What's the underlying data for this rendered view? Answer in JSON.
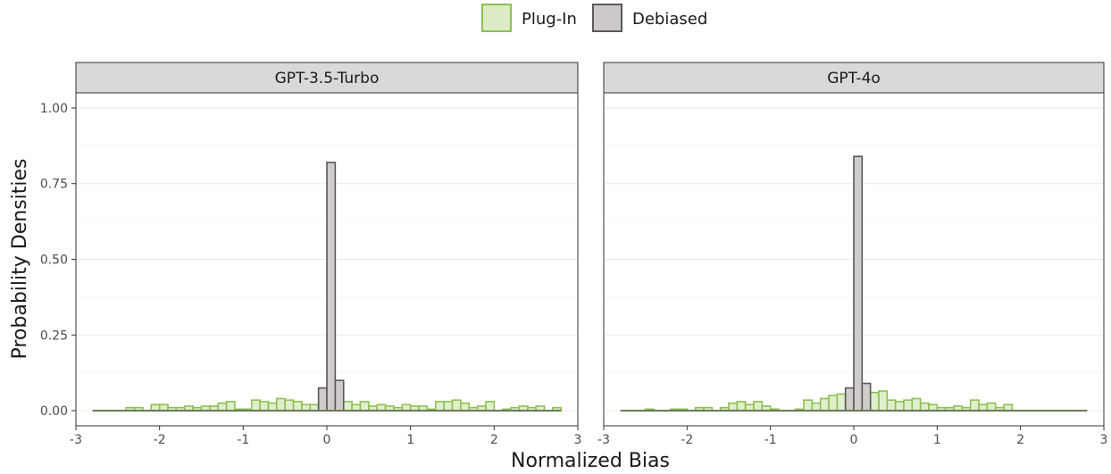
{
  "chart_data": {
    "type": "bar",
    "xlabel": "Normalized Bias",
    "ylabel": "Probability Densities",
    "xlim": [
      -3,
      3
    ],
    "ylim": [
      -0.05,
      1.05
    ],
    "x_ticks": [
      -3,
      -2,
      -1,
      0,
      1,
      2,
      3
    ],
    "x_tick_labels": [
      "-3",
      "-2",
      "-1",
      "0",
      "1",
      "2",
      "3"
    ],
    "y_ticks": [
      0,
      0.25,
      0.5,
      0.75,
      1
    ],
    "y_tick_labels": [
      "0.00",
      "0.25",
      "0.50",
      "0.75",
      "1.00"
    ],
    "grid": true,
    "legend": {
      "position": "top",
      "entries": [
        {
          "name": "Plug-In",
          "fill": "#dcebc6",
          "stroke": "#8cc152"
        },
        {
          "name": "Debiased",
          "fill": "#cdc9c9",
          "stroke": "#595959"
        }
      ]
    },
    "bin_width": 0.1,
    "x_range": [
      -2.8,
      2.8
    ],
    "panels": [
      {
        "title": "GPT-3.5-Turbo",
        "series": [
          {
            "name": "Plug-In",
            "bins": [
              [
                -2.35,
                0.01
              ],
              [
                -2.25,
                0.01
              ],
              [
                -2.05,
                0.02
              ],
              [
                -1.95,
                0.02
              ],
              [
                -1.85,
                0.01
              ],
              [
                -1.75,
                0.01
              ],
              [
                -1.65,
                0.015
              ],
              [
                -1.55,
                0.01
              ],
              [
                -1.45,
                0.015
              ],
              [
                -1.35,
                0.015
              ],
              [
                -1.25,
                0.025
              ],
              [
                -1.15,
                0.03
              ],
              [
                -1.05,
                0.005
              ],
              [
                -0.95,
                0.005
              ],
              [
                -0.85,
                0.035
              ],
              [
                -0.75,
                0.03
              ],
              [
                -0.65,
                0.025
              ],
              [
                -0.55,
                0.04
              ],
              [
                -0.45,
                0.035
              ],
              [
                -0.35,
                0.03
              ],
              [
                -0.25,
                0.02
              ],
              [
                -0.15,
                0.02
              ],
              [
                -0.05,
                0.025
              ],
              [
                0.05,
                0.02
              ],
              [
                0.25,
                0.03
              ],
              [
                0.35,
                0.02
              ],
              [
                0.45,
                0.03
              ],
              [
                0.55,
                0.015
              ],
              [
                0.65,
                0.02
              ],
              [
                0.75,
                0.015
              ],
              [
                0.85,
                0.01
              ],
              [
                0.95,
                0.02
              ],
              [
                1.05,
                0.015
              ],
              [
                1.15,
                0.015
              ],
              [
                1.25,
                0.005
              ],
              [
                1.35,
                0.03
              ],
              [
                1.45,
                0.03
              ],
              [
                1.55,
                0.035
              ],
              [
                1.65,
                0.025
              ],
              [
                1.75,
                0.01
              ],
              [
                1.85,
                0.015
              ],
              [
                1.95,
                0.03
              ],
              [
                2.15,
                0.005
              ],
              [
                2.25,
                0.01
              ],
              [
                2.35,
                0.015
              ],
              [
                2.45,
                0.01
              ],
              [
                2.55,
                0.015
              ],
              [
                2.75,
                0.01
              ]
            ]
          },
          {
            "name": "Debiased",
            "bins": [
              [
                -0.05,
                0.075
              ],
              [
                0.05,
                0.82
              ],
              [
                0.15,
                0.1
              ]
            ]
          }
        ]
      },
      {
        "title": "GPT-4o",
        "series": [
          {
            "name": "Plug-In",
            "bins": [
              [
                -2.45,
                0.005
              ],
              [
                -2.15,
                0.005
              ],
              [
                -2.05,
                0.005
              ],
              [
                -1.85,
                0.01
              ],
              [
                -1.75,
                0.01
              ],
              [
                -1.55,
                0.01
              ],
              [
                -1.45,
                0.025
              ],
              [
                -1.35,
                0.03
              ],
              [
                -1.25,
                0.02
              ],
              [
                -1.15,
                0.03
              ],
              [
                -1.05,
                0.015
              ],
              [
                -0.95,
                0.005
              ],
              [
                -0.65,
                0.005
              ],
              [
                -0.55,
                0.035
              ],
              [
                -0.45,
                0.025
              ],
              [
                -0.35,
                0.04
              ],
              [
                -0.25,
                0.05
              ],
              [
                -0.15,
                0.055
              ],
              [
                -0.05,
                0.045
              ],
              [
                0.05,
                0.04
              ],
              [
                0.15,
                0.055
              ],
              [
                0.25,
                0.06
              ],
              [
                0.35,
                0.065
              ],
              [
                0.45,
                0.035
              ],
              [
                0.55,
                0.03
              ],
              [
                0.65,
                0.035
              ],
              [
                0.75,
                0.04
              ],
              [
                0.85,
                0.025
              ],
              [
                0.95,
                0.02
              ],
              [
                1.05,
                0.01
              ],
              [
                1.15,
                0.01
              ],
              [
                1.25,
                0.015
              ],
              [
                1.35,
                0.01
              ],
              [
                1.45,
                0.035
              ],
              [
                1.55,
                0.02
              ],
              [
                1.65,
                0.025
              ],
              [
                1.75,
                0.01
              ],
              [
                1.85,
                0.02
              ]
            ]
          },
          {
            "name": "Debiased",
            "bins": [
              [
                -0.05,
                0.075
              ],
              [
                0.05,
                0.84
              ],
              [
                0.15,
                0.09
              ]
            ]
          }
        ]
      }
    ]
  }
}
